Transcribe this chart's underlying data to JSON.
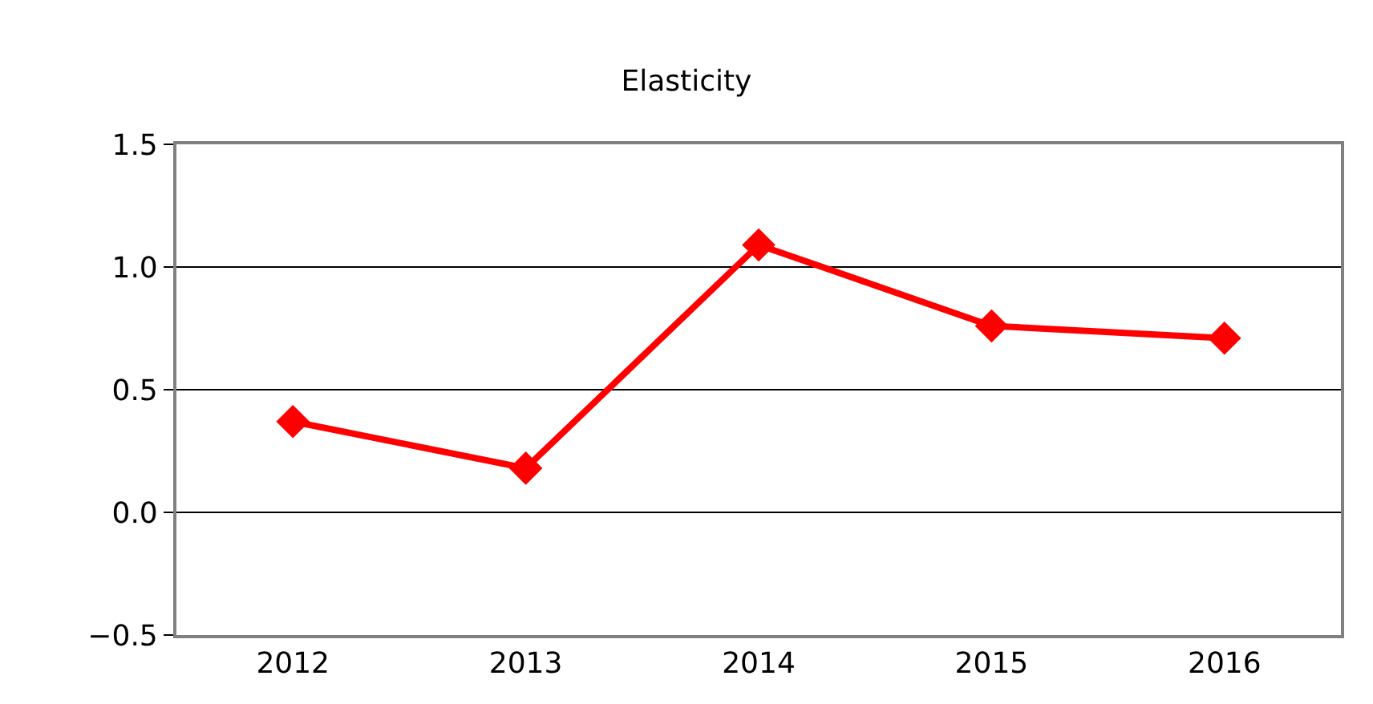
{
  "chart_data": {
    "type": "line",
    "title": "Elasticity",
    "categories": [
      "2012",
      "2013",
      "2014",
      "2015",
      "2016"
    ],
    "series": [
      {
        "color": "#ff0000",
        "values": [
          0.37,
          0.18,
          1.09,
          0.76,
          0.71
        ]
      }
    ],
    "ylim": [
      -0.5,
      1.5
    ],
    "yticks": [
      {
        "value": -0.5,
        "label": "−0.5"
      },
      {
        "value": 0,
        "label": "0.0"
      },
      {
        "value": 0.5,
        "label": "0.5"
      },
      {
        "value": 1.0,
        "label": "1.0"
      },
      {
        "value": 1.5,
        "label": "1.5"
      }
    ],
    "grid": "y",
    "marker": "diamond",
    "line_style": "solid",
    "legend": false
  }
}
